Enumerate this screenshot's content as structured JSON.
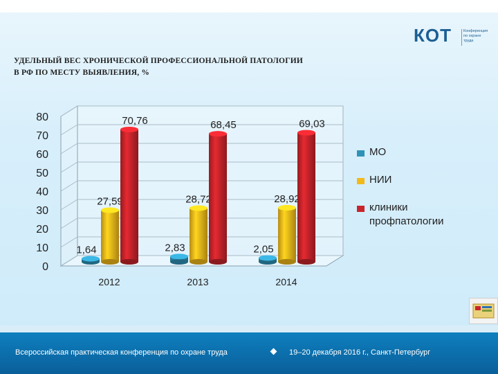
{
  "slide": {
    "title_line1": "УДЕЛЬНЫЙ ВЕС ХРОНИЧЕСКОЙ ПРОФЕССИОНАЛЬНОЙ ПАТОЛОГИИ",
    "title_line2": "В РФ ПО МЕСТУ ВЫЯВЛЕНИЯ, %",
    "logo_text": "КОТ",
    "logo_sub": [
      "Конференция",
      "по охране",
      "труда"
    ],
    "footer_left": "Всероссийская практическая конференция по охране труда",
    "footer_right": "19–20 декабря 2016 г., Санкт-Петербург"
  },
  "colors": {
    "mo": "#2f93b8",
    "nii": "#f2b91a",
    "clinics": "#c8242b",
    "footer": "#0a6ca8"
  },
  "chart_data": {
    "type": "bar",
    "title": "УДЕЛЬНЫЙ ВЕС ХРОНИЧЕСКОЙ ПРОФЕССИОНАЛЬНОЙ ПАТОЛОГИИ В РФ ПО МЕСТУ ВЫЯВЛЕНИЯ, %",
    "categories": [
      "2012",
      "2013",
      "2014"
    ],
    "series": [
      {
        "name": "МО",
        "values": [
          1.64,
          2.83,
          2.05
        ],
        "labels": [
          "1,64",
          "2,83",
          "2,05"
        ]
      },
      {
        "name": "НИИ",
        "values": [
          27.59,
          28.72,
          28.92
        ],
        "labels": [
          "27,59",
          "28,72",
          "28,92"
        ]
      },
      {
        "name": "клиники профпатологии",
        "values": [
          70.76,
          68.45,
          69.03
        ],
        "labels": [
          "70,76",
          "68,45",
          "69,03"
        ]
      }
    ],
    "yticks": [
      "0",
      "10",
      "20",
      "30",
      "40",
      "50",
      "60",
      "70",
      "80"
    ],
    "ylim": [
      0,
      80
    ],
    "xlabel": "",
    "ylabel": "",
    "legend": [
      "МО",
      "НИИ",
      "клиники профпатологии"
    ],
    "legend_position": "right",
    "grid": true,
    "style": "3d-cylinder"
  }
}
